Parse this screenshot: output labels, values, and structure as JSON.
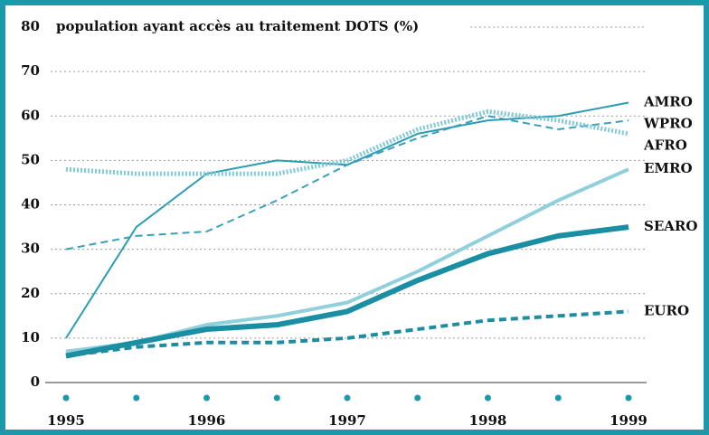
{
  "chart_data": {
    "type": "line",
    "title": "population ayant accès au traitement DOTS (%)",
    "x": [
      1995,
      1995.5,
      1996,
      1996.5,
      1997,
      1997.5,
      1998,
      1998.5,
      1999
    ],
    "xlim": [
      1995,
      1999
    ],
    "xticks": [
      1995,
      1996,
      1997,
      1998,
      1999
    ],
    "xminorticks": [
      1995.5,
      1996.5,
      1997.5,
      1998.5
    ],
    "ylim": [
      0,
      80
    ],
    "yticks": [
      0,
      10,
      20,
      30,
      40,
      50,
      60,
      70,
      80
    ],
    "grid": true,
    "series": [
      {
        "name": "AMRO",
        "color": "#2a9db5",
        "style": "solid",
        "width": 2,
        "values": [
          10,
          35,
          47,
          50,
          49,
          56,
          59,
          60,
          63
        ]
      },
      {
        "name": "WPRO",
        "color": "#3aa0b8",
        "style": "dashed",
        "width": 2,
        "values": [
          30,
          33,
          34,
          41,
          49,
          55,
          60,
          57,
          59
        ]
      },
      {
        "name": "AFRO",
        "color": "#7fcad5",
        "style": "dotted",
        "width": 5,
        "values": [
          48,
          47,
          47,
          47,
          50,
          57,
          61,
          59,
          56
        ]
      },
      {
        "name": "EMRO",
        "color": "#8fd0da",
        "style": "solid",
        "width": 4,
        "values": [
          7,
          9,
          13,
          15,
          18,
          25,
          33,
          41,
          48
        ]
      },
      {
        "name": "SEARO",
        "color": "#1a8fa3",
        "style": "solid",
        "width": 6,
        "values": [
          6,
          9,
          12,
          13,
          16,
          23,
          29,
          33,
          35
        ]
      },
      {
        "name": "EURO",
        "color": "#1f8da0",
        "style": "dashed",
        "width": 4,
        "values": [
          6,
          8,
          9,
          9,
          10,
          12,
          14,
          15,
          16
        ]
      }
    ]
  }
}
